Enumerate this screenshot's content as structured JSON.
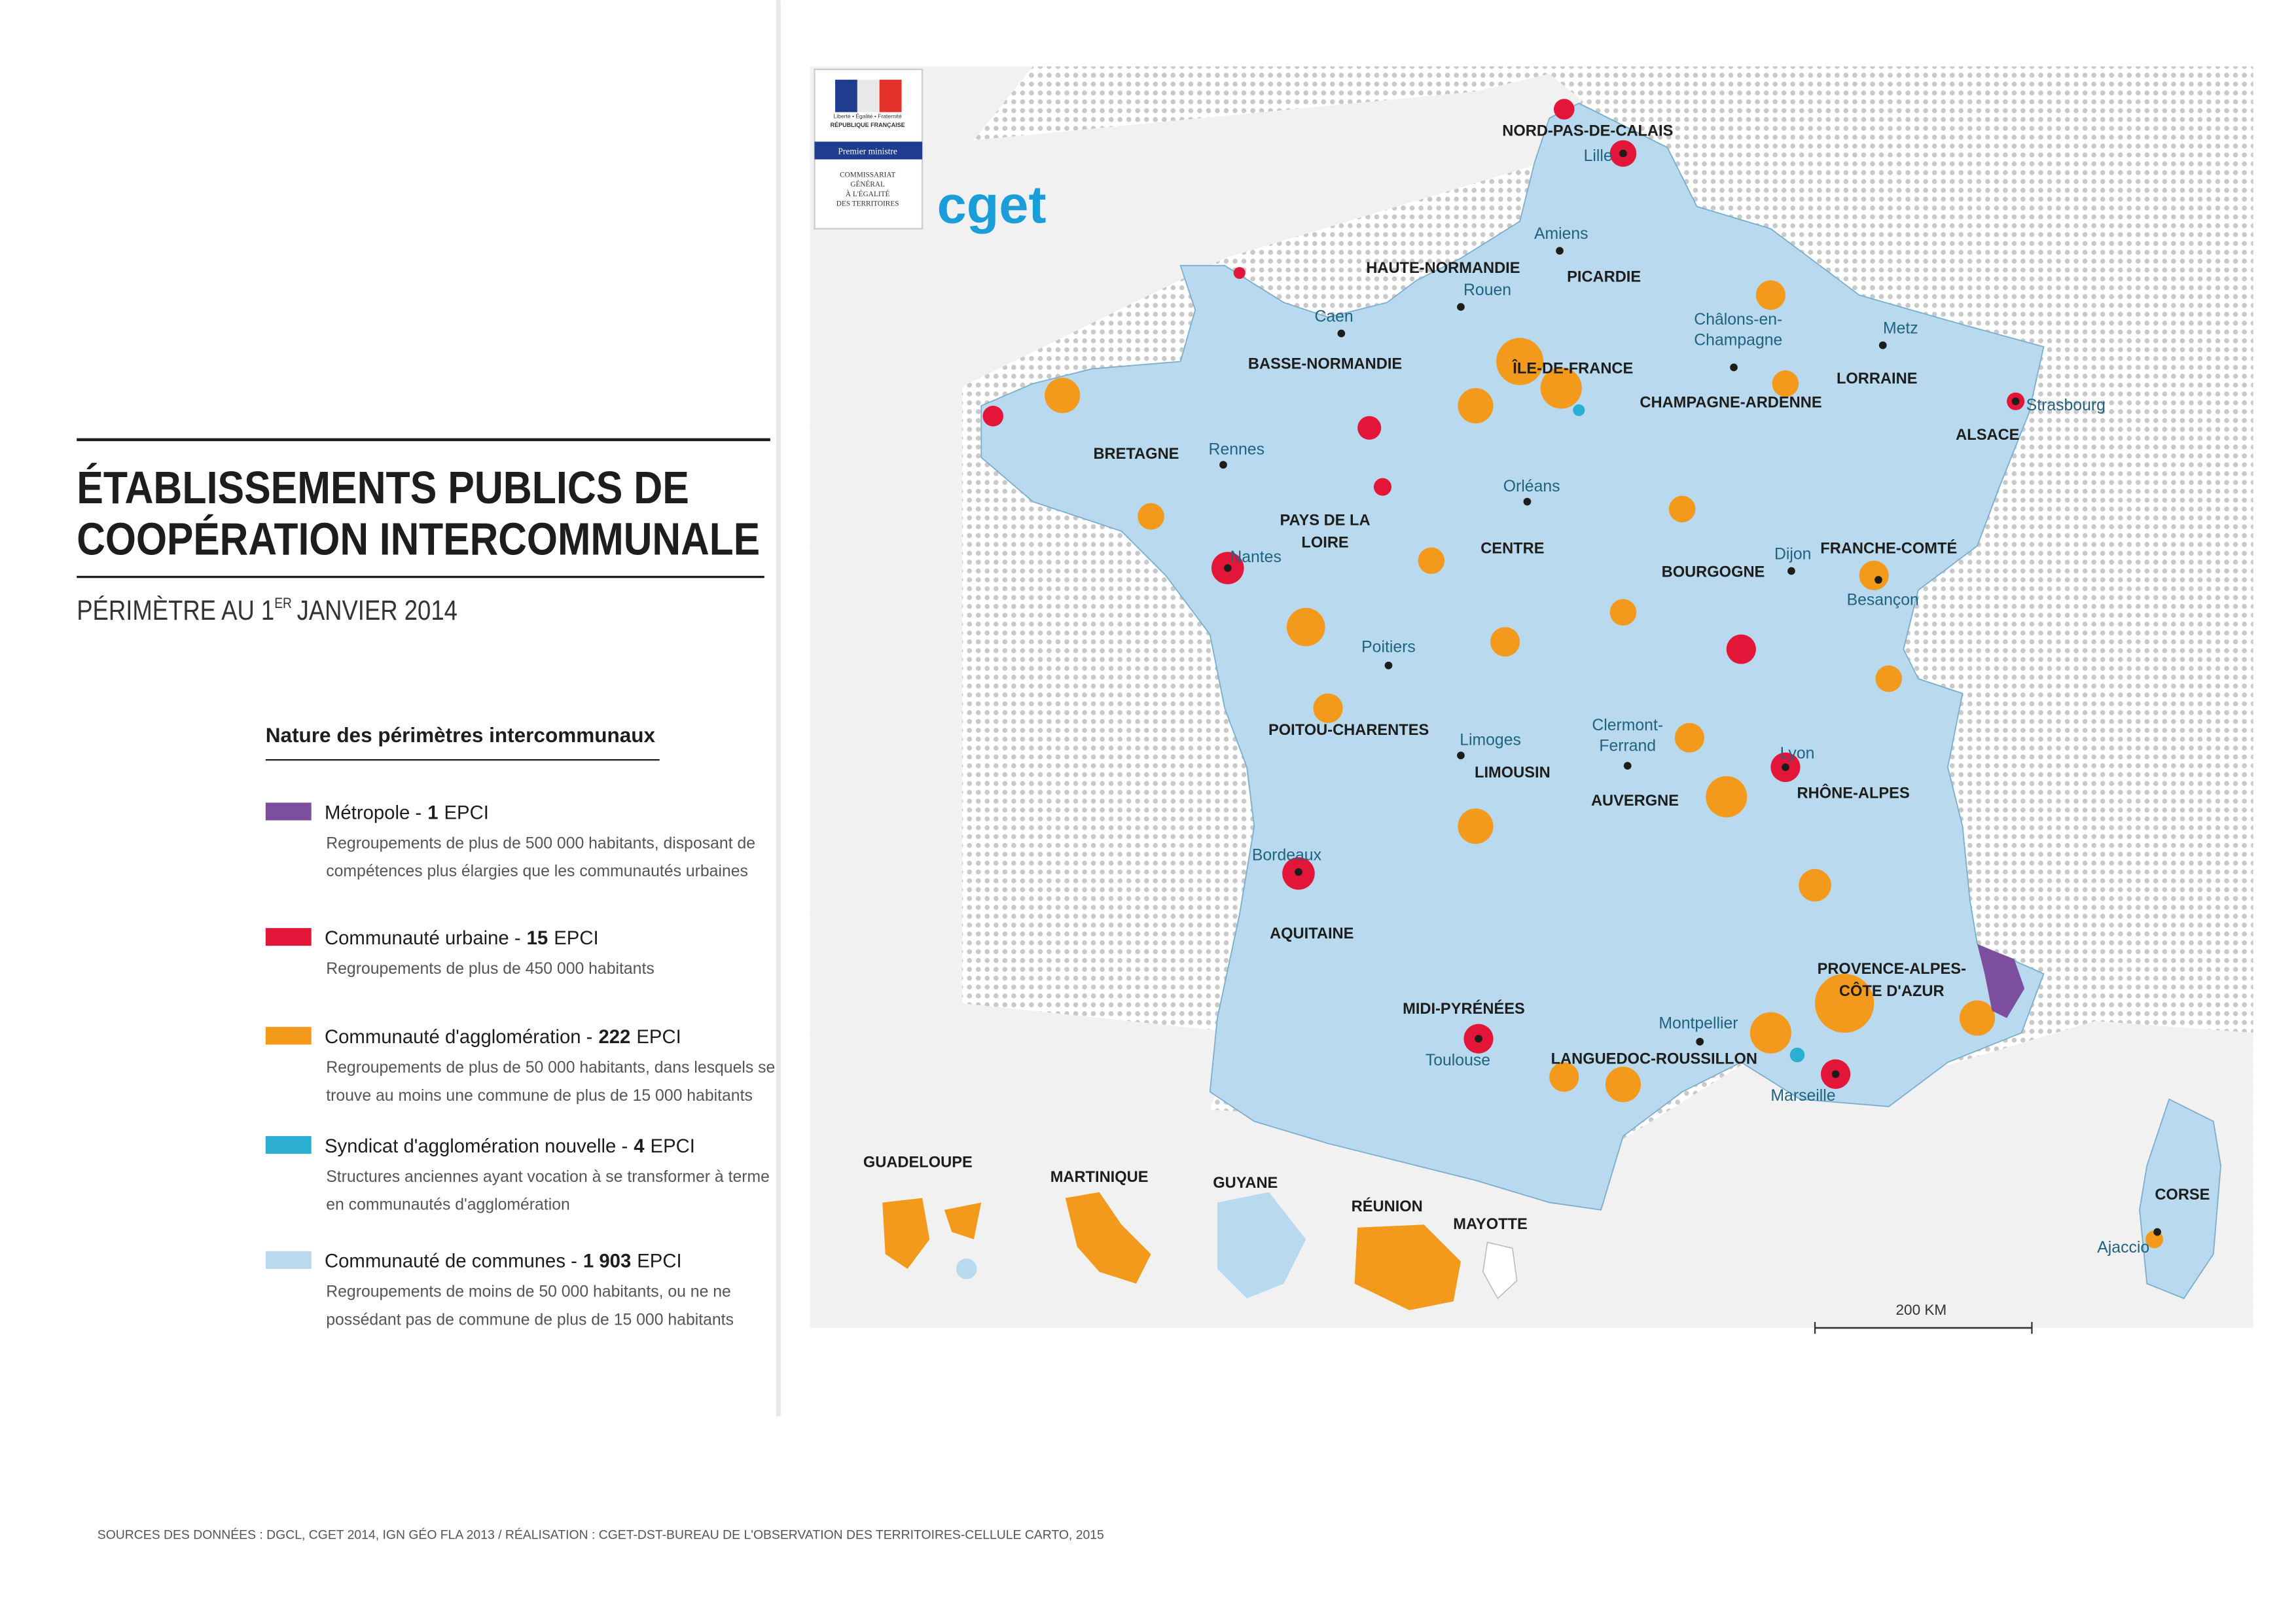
{
  "header": {
    "title_lines": [
      "ÉTABLISSEMENTS PUBLICS DE",
      "COOPÉRATION INTERCOMMUNALE"
    ],
    "subtitle": {
      "prefix": "PÉRIMÈTRE AU 1",
      "sup": "ER",
      "suffix": "JANVIER 2014"
    }
  },
  "logo": {
    "motto": "Liberté • Égalité • Fraternité",
    "republic": "RÉPUBLIQUE FRANÇAISE",
    "ministry": "Premier ministre",
    "agency_lines": [
      "COMMISSARIAT",
      "GÉNÉRAL",
      "À L'ÉGALITÉ",
      "DES TERRITOIRES"
    ],
    "brand": "cget"
  },
  "legend": {
    "title": "Nature des périmètres intercommunaux",
    "items": [
      {
        "label": "Métropole -",
        "count": "1",
        "unit": "EPCI",
        "color": "#7b4f9e",
        "description": [
          "Regroupements de plus de 500 000 habitants, disposant de",
          "compétences plus élargies que les communautés urbaines"
        ]
      },
      {
        "label": "Communauté urbaine -",
        "count": "15",
        "unit": "EPCI",
        "color": "#e3163a",
        "description": [
          "Regroupements de plus de 450 000 habitants"
        ]
      },
      {
        "label": "Communauté d'agglomération -",
        "count": "222",
        "unit": "EPCI",
        "color": "#f39a1c",
        "description": [
          "Regroupements de plus de 50 000 habitants, dans lesquels se",
          "trouve au moins une commune de plus de 15 000 habitants"
        ]
      },
      {
        "label": "Syndicat d'agglomération nouvelle -",
        "count": "4",
        "unit": "EPCI",
        "color": "#2aaed1",
        "description": [
          "Structures anciennes ayant vocation à se transformer à terme",
          "en communautés d'agglomération"
        ]
      },
      {
        "label": "Communauté de communes -",
        "count": "1 903",
        "unit": "EPCI",
        "color": "#b9d9ee",
        "description": [
          "Regroupements de moins de 50 000 habitants, ou ne ne",
          "possédant pas de commune de plus de 15 000 habitants"
        ]
      }
    ]
  },
  "map": {
    "regions": [
      [
        "NORD-PAS-DE-CALAIS"
      ],
      [
        "PICARDIE"
      ],
      [
        "HAUTE-NORMANDIE"
      ],
      [
        "BASSE-NORMANDIE"
      ],
      [
        "ÎLE-DE-FRANCE"
      ],
      [
        "CHAMPAGNE-ARDENNE"
      ],
      [
        "LORRAINE"
      ],
      [
        "ALSACE"
      ],
      [
        "BRETAGNE"
      ],
      [
        "PAYS DE LA",
        "LOIRE"
      ],
      [
        "CENTRE"
      ],
      [
        "BOURGOGNE"
      ],
      [
        "FRANCHE-COMTÉ"
      ],
      [
        "POITOU-CHARENTES"
      ],
      [
        "LIMOUSIN"
      ],
      [
        "AUVERGNE"
      ],
      [
        "RHÔNE-ALPES"
      ],
      [
        "AQUITAINE"
      ],
      [
        "MIDI-PYRÉNÉES"
      ],
      [
        "LANGUEDOC-ROUSSILLON"
      ],
      [
        "PROVENCE-ALPES-",
        "CÔTE D'AZUR"
      ],
      [
        "CORSE"
      ],
      [
        "GUADELOUPE"
      ],
      [
        "MARTINIQUE"
      ],
      [
        "GUYANE"
      ],
      [
        "RÉUNION"
      ],
      [
        "MAYOTTE"
      ]
    ],
    "cities": [
      [
        "Lille"
      ],
      [
        "Amiens"
      ],
      [
        "Rouen"
      ],
      [
        "Caen"
      ],
      [
        "Châlons-en-",
        "Champagne"
      ],
      [
        "Metz"
      ],
      [
        "Strasbourg"
      ],
      [
        "Rennes"
      ],
      [
        "Orléans"
      ],
      [
        "Nantes"
      ],
      [
        "Dijon"
      ],
      [
        "Besançon"
      ],
      [
        "Poitiers"
      ],
      [
        "Limoges"
      ],
      [
        "Clermont-",
        "Ferrand"
      ],
      [
        "Lyon"
      ],
      [
        "Bordeaux"
      ],
      [
        "Montpellier"
      ],
      [
        "Toulouse"
      ],
      [
        "Marseille"
      ],
      [
        "Ajaccio"
      ]
    ],
    "scale": "200 KM"
  },
  "footer": {
    "source": "SOURCES DES DONNÉES : DGCL, CGET 2014, IGN GÉO FLA 2013 / RÉALISATION : CGET-DST-BUREAU DE L'OBSERVATION DES TERRITOIRES-CELLULE CARTO, 2015"
  }
}
